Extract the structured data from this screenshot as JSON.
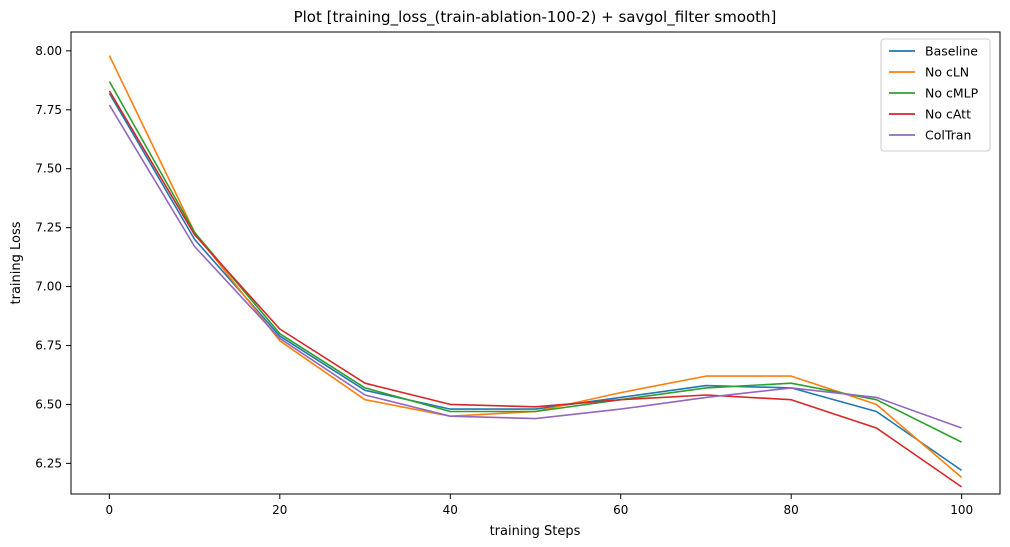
{
  "chart_data": {
    "type": "line",
    "title": "Plot [training_loss_(train-ablation-100-2) + savgol_filter smooth]",
    "xlabel": "training Steps",
    "ylabel": "training Loss",
    "xlim": [
      -4.5,
      104.5
    ],
    "ylim": [
      6.12,
      8.08
    ],
    "xticks": [
      0,
      20,
      40,
      60,
      80,
      100
    ],
    "yticks": [
      6.25,
      6.5,
      6.75,
      7.0,
      7.25,
      7.5,
      7.75,
      8.0
    ],
    "xtick_labels": [
      "0",
      "20",
      "40",
      "60",
      "80",
      "100"
    ],
    "ytick_labels": [
      "6.25",
      "6.50",
      "6.75",
      "7.00",
      "7.25",
      "7.50",
      "7.75",
      "8.00"
    ],
    "grid": false,
    "legend_position": "top-right",
    "x": [
      0,
      10,
      20,
      30,
      40,
      50,
      60,
      70,
      80,
      90,
      100
    ],
    "series": [
      {
        "name": "Baseline",
        "color": "#1f77b4",
        "values": [
          7.82,
          7.2,
          6.79,
          6.56,
          6.48,
          6.48,
          6.53,
          6.58,
          6.57,
          6.47,
          6.22
        ]
      },
      {
        "name": "No cLN",
        "color": "#ff7f0e",
        "values": [
          7.98,
          7.23,
          6.77,
          6.52,
          6.45,
          6.47,
          6.55,
          6.62,
          6.62,
          6.5,
          6.19
        ]
      },
      {
        "name": "No cMLP",
        "color": "#2ca02c",
        "values": [
          7.87,
          7.23,
          6.8,
          6.57,
          6.47,
          6.47,
          6.52,
          6.57,
          6.59,
          6.52,
          6.34
        ]
      },
      {
        "name": "No cAtt",
        "color": "#d62728",
        "values": [
          7.83,
          7.22,
          6.82,
          6.59,
          6.5,
          6.49,
          6.52,
          6.54,
          6.52,
          6.4,
          6.15
        ]
      },
      {
        "name": "ColTran",
        "color": "#9467bd",
        "values": [
          7.77,
          7.17,
          6.78,
          6.54,
          6.45,
          6.44,
          6.48,
          6.53,
          6.57,
          6.53,
          6.4
        ]
      }
    ]
  }
}
